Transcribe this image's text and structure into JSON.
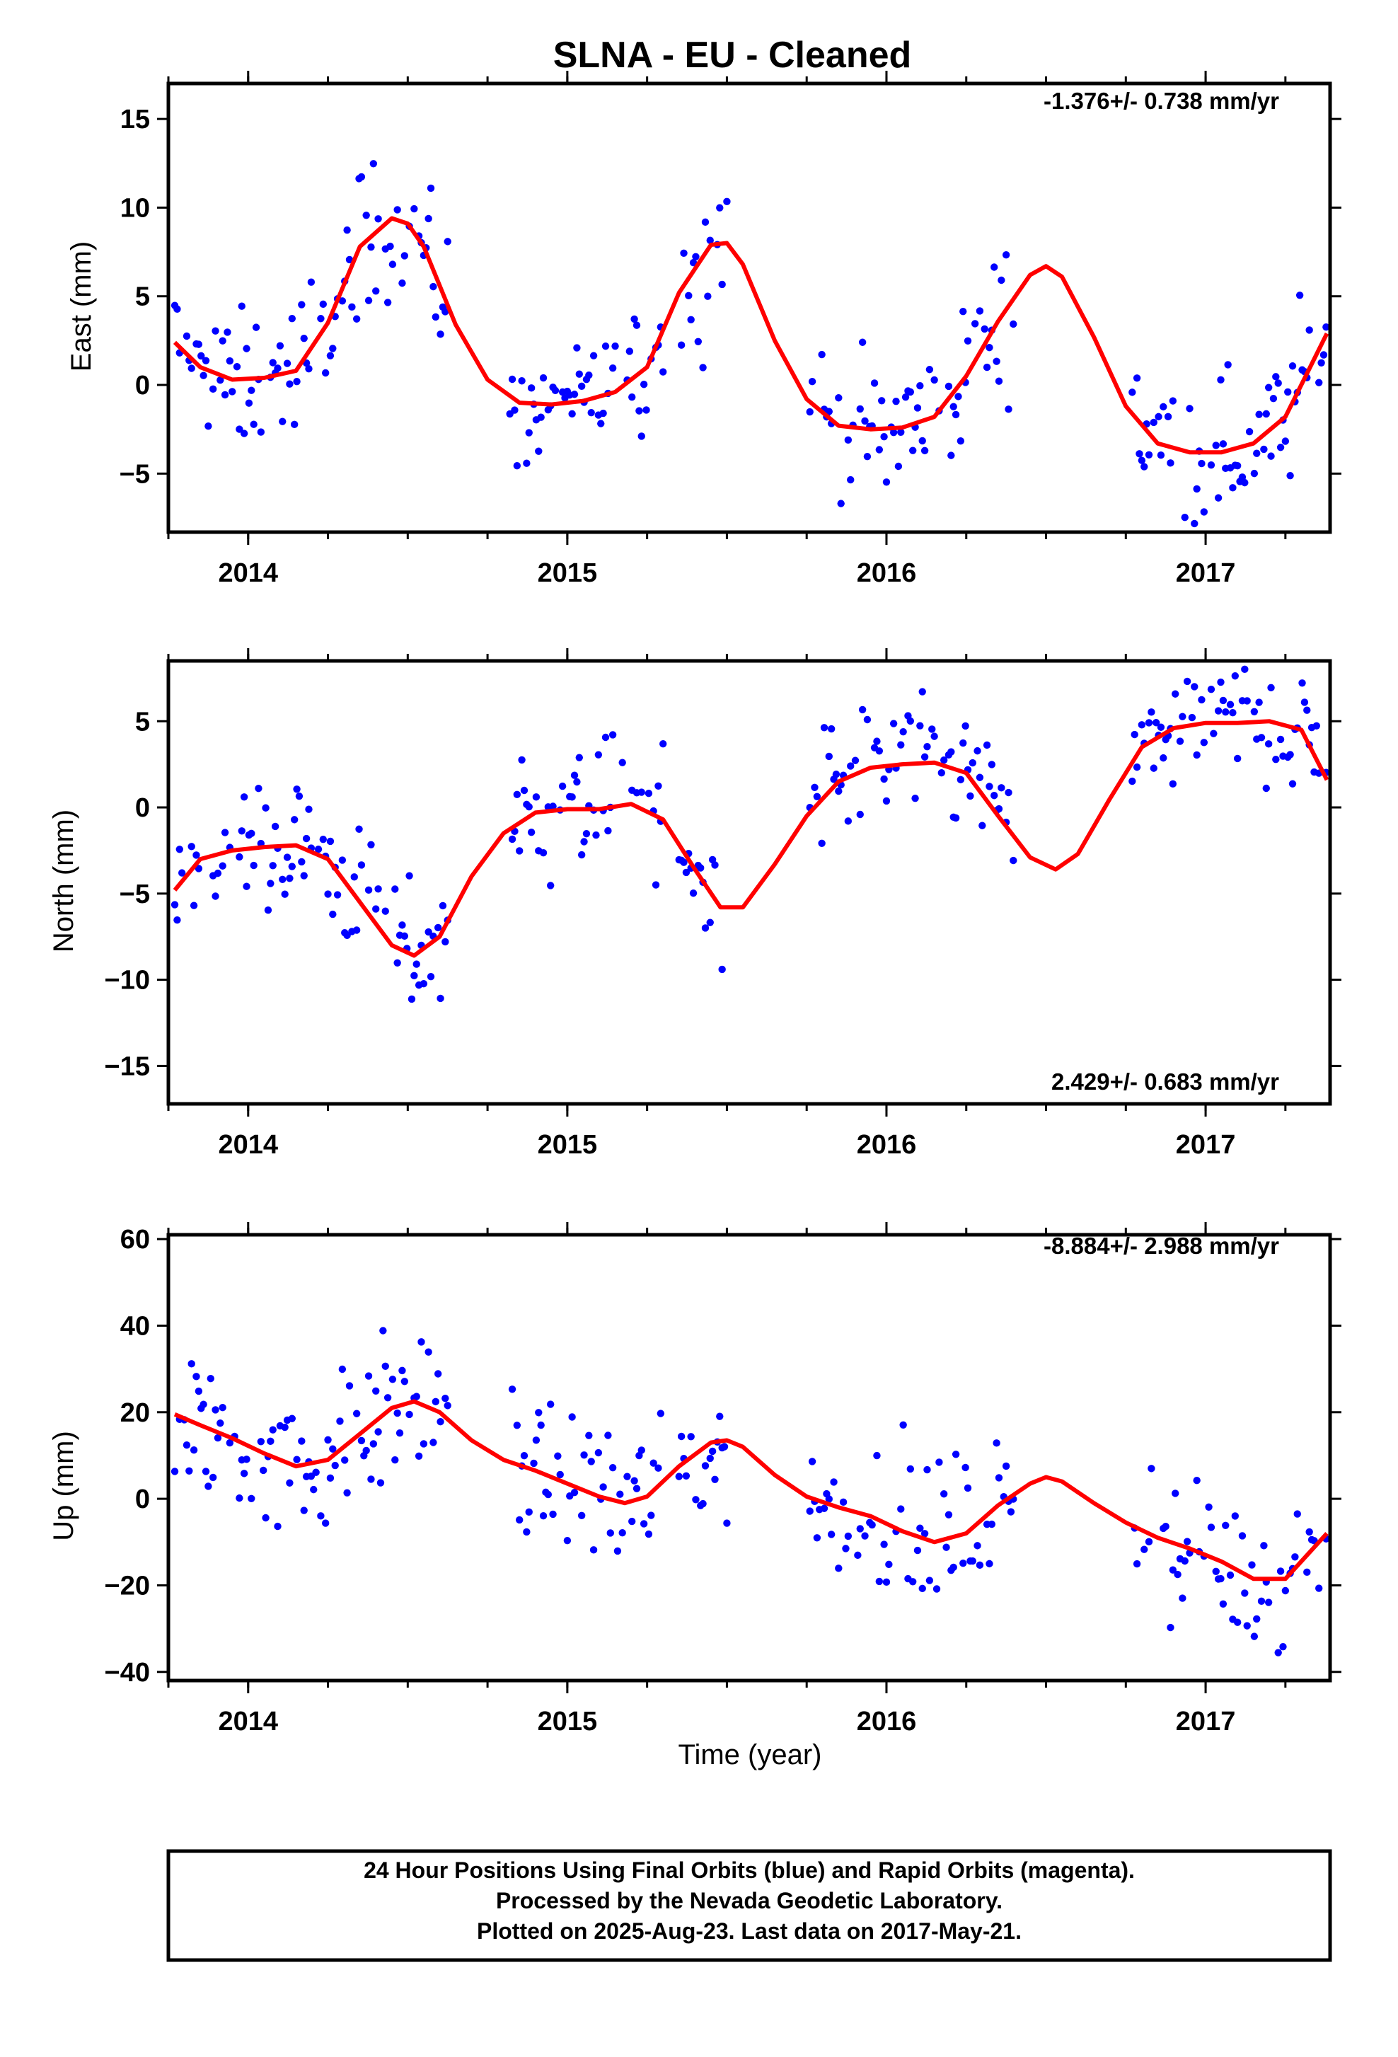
{
  "title": "SLNA  - EU - Cleaned",
  "footer": {
    "line1": "24 Hour Positions Using Final Orbits (blue) and Rapid Orbits (magenta).",
    "line2": "Processed by the Nevada Geodetic Laboratory.",
    "line3": "Plotted on 2025-Aug-23. Last data on 2017-May-21."
  },
  "colors": {
    "points": "#0000ff",
    "fit": "#ff0000",
    "frame": "#000000"
  },
  "chart_data": [
    {
      "type": "scatter",
      "ylabel": "East (mm)",
      "xlabel": "",
      "rate": "-1.376+/- 0.738 mm/yr",
      "rate_position": "top-right",
      "xlim": [
        2013.75,
        2017.39
      ],
      "ylim": [
        -8.3,
        17
      ],
      "xticks": [
        2014,
        2015,
        2016,
        2017
      ],
      "xtick_labels": [
        "2014",
        "2015",
        "2016",
        "2017"
      ],
      "yticks": [
        -5,
        0,
        5,
        10,
        15
      ],
      "ytick_labels": [
        "−5",
        "0",
        "5",
        "10",
        "15"
      ],
      "series": [
        {
          "role": "daily-positions",
          "color": "#0000ff"
        },
        {
          "role": "model-fit",
          "color": "#ff0000",
          "x": [
            2013.77,
            2013.85,
            2013.95,
            2014.05,
            2014.15,
            2014.25,
            2014.35,
            2014.45,
            2014.5,
            2014.55,
            2014.65,
            2014.75,
            2014.85,
            2014.95,
            2015.05,
            2015.15,
            2015.25,
            2015.35,
            2015.45,
            2015.5,
            2015.55,
            2015.65,
            2015.75,
            2015.85,
            2015.95,
            2016.05,
            2016.15,
            2016.25,
            2016.35,
            2016.45,
            2016.5,
            2016.55,
            2016.65,
            2016.75,
            2016.85,
            2016.95,
            2017.05,
            2017.15,
            2017.25,
            2017.38
          ],
          "y": [
            2.4,
            1.0,
            0.3,
            0.4,
            0.8,
            3.5,
            7.8,
            9.4,
            9.1,
            7.8,
            3.4,
            0.3,
            -1.0,
            -1.1,
            -0.9,
            -0.4,
            1.0,
            5.2,
            7.9,
            8.0,
            6.8,
            2.5,
            -0.8,
            -2.3,
            -2.5,
            -2.4,
            -1.8,
            0.5,
            3.6,
            6.2,
            6.7,
            6.1,
            2.7,
            -1.2,
            -3.3,
            -3.8,
            -3.8,
            -3.3,
            -1.8,
            2.9
          ]
        }
      ]
    },
    {
      "type": "scatter",
      "ylabel": "North (mm)",
      "xlabel": "",
      "rate": "2.429+/- 0.683 mm/yr",
      "rate_position": "bottom-right",
      "xlim": [
        2013.75,
        2017.39
      ],
      "ylim": [
        -17.2,
        8.5
      ],
      "xticks": [
        2014,
        2015,
        2016,
        2017
      ],
      "xtick_labels": [
        "2014",
        "2015",
        "2016",
        "2017"
      ],
      "yticks": [
        -15,
        -10,
        -5,
        0,
        5
      ],
      "ytick_labels": [
        "−15",
        "−10",
        "−5",
        "0",
        "5"
      ],
      "series": [
        {
          "role": "daily-positions",
          "color": "#0000ff"
        },
        {
          "role": "model-fit",
          "color": "#ff0000",
          "x": [
            2013.77,
            2013.85,
            2013.95,
            2014.05,
            2014.15,
            2014.25,
            2014.35,
            2014.45,
            2014.52,
            2014.6,
            2014.7,
            2014.8,
            2014.9,
            2015.0,
            2015.1,
            2015.2,
            2015.3,
            2015.4,
            2015.48,
            2015.55,
            2015.65,
            2015.75,
            2015.85,
            2015.95,
            2016.05,
            2016.15,
            2016.25,
            2016.35,
            2016.45,
            2016.53,
            2016.6,
            2016.7,
            2016.8,
            2016.9,
            2017.0,
            2017.1,
            2017.2,
            2017.3,
            2017.38
          ],
          "y": [
            -4.8,
            -3.0,
            -2.5,
            -2.3,
            -2.2,
            -3.0,
            -5.5,
            -8.0,
            -8.6,
            -7.5,
            -4.0,
            -1.5,
            -0.3,
            -0.1,
            -0.1,
            0.2,
            -0.7,
            -3.6,
            -5.8,
            -5.8,
            -3.3,
            -0.5,
            1.5,
            2.3,
            2.5,
            2.6,
            2.0,
            -0.5,
            -2.9,
            -3.6,
            -2.7,
            0.5,
            3.5,
            4.6,
            4.9,
            4.9,
            5.0,
            4.5,
            1.6
          ]
        }
      ]
    },
    {
      "type": "scatter",
      "ylabel": "Up (mm)",
      "xlabel": "Time (year)",
      "rate": "-8.884+/- 2.988 mm/yr",
      "rate_position": "top-right",
      "xlim": [
        2013.75,
        2017.39
      ],
      "ylim": [
        -42,
        61
      ],
      "xticks": [
        2014,
        2015,
        2016,
        2017
      ],
      "xtick_labels": [
        "2014",
        "2015",
        "2016",
        "2017"
      ],
      "yticks": [
        -40,
        -20,
        0,
        20,
        40,
        60
      ],
      "ytick_labels": [
        "−40",
        "−20",
        "0",
        "20",
        "40",
        "60"
      ],
      "series": [
        {
          "role": "daily-positions",
          "color": "#0000ff"
        },
        {
          "role": "model-fit",
          "color": "#ff0000",
          "x": [
            2013.77,
            2013.85,
            2013.95,
            2014.05,
            2014.15,
            2014.25,
            2014.35,
            2014.45,
            2014.52,
            2014.6,
            2014.7,
            2014.8,
            2014.9,
            2015.0,
            2015.1,
            2015.18,
            2015.25,
            2015.35,
            2015.45,
            2015.5,
            2015.55,
            2015.65,
            2015.75,
            2015.85,
            2015.95,
            2016.05,
            2016.15,
            2016.25,
            2016.35,
            2016.45,
            2016.5,
            2016.55,
            2016.65,
            2016.75,
            2016.85,
            2016.95,
            2017.05,
            2017.15,
            2017.25,
            2017.38
          ],
          "y": [
            19.5,
            17.0,
            14.0,
            10.5,
            7.5,
            9.0,
            15.0,
            21.0,
            22.5,
            20.0,
            13.5,
            9.0,
            6.5,
            3.5,
            0.5,
            -1.0,
            0.5,
            7.5,
            13.0,
            13.5,
            12.0,
            5.5,
            0.5,
            -2.0,
            -4.0,
            -7.5,
            -10.0,
            -8.0,
            -1.5,
            3.5,
            5.0,
            4.0,
            -1.0,
            -5.5,
            -9.0,
            -11.5,
            -14.5,
            -18.5,
            -18.5,
            -8.0
          ]
        }
      ]
    }
  ]
}
